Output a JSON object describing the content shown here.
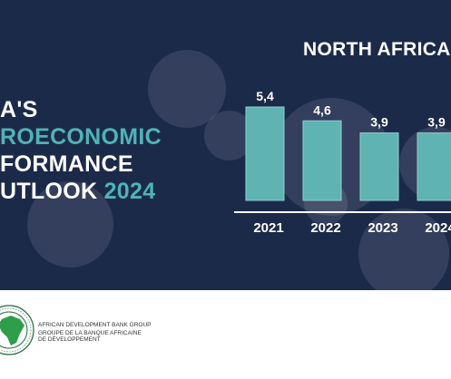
{
  "report": {
    "title_lines": [
      "A'S",
      "ROECONOMIC",
      "FORMANCE",
      "UTLOOK"
    ],
    "year": "2024"
  },
  "chart_data": {
    "type": "bar",
    "title": "NORTH AFRICA",
    "categories": [
      "2021",
      "2022",
      "2023",
      "2024"
    ],
    "values": [
      5.4,
      4.6,
      3.9,
      3.9
    ],
    "value_labels": [
      "5,4",
      "4,6",
      "3,9",
      "3,9"
    ],
    "ylim": [
      0,
      5.4
    ],
    "xlabel": "",
    "ylabel": "",
    "grid": false,
    "colors": {
      "bar": "#5fb3b3",
      "bar_edge": "#8fd0cf",
      "background": "#1c2a4a",
      "text": "#ffffff"
    }
  },
  "footer": {
    "org_name_en": "AFRICAN DEVELOPMENT BANK GROUP",
    "org_name_fr_1": "GROUPE DE LA BANQUE AFRICAINE",
    "org_name_fr_2": "DE DÉVELOPPEMENT",
    "logo_ring_text": "AFRICAN DEVELOPMENT BANK • BANQUE AFRICAINE DE DÉVELOPPEMENT"
  }
}
